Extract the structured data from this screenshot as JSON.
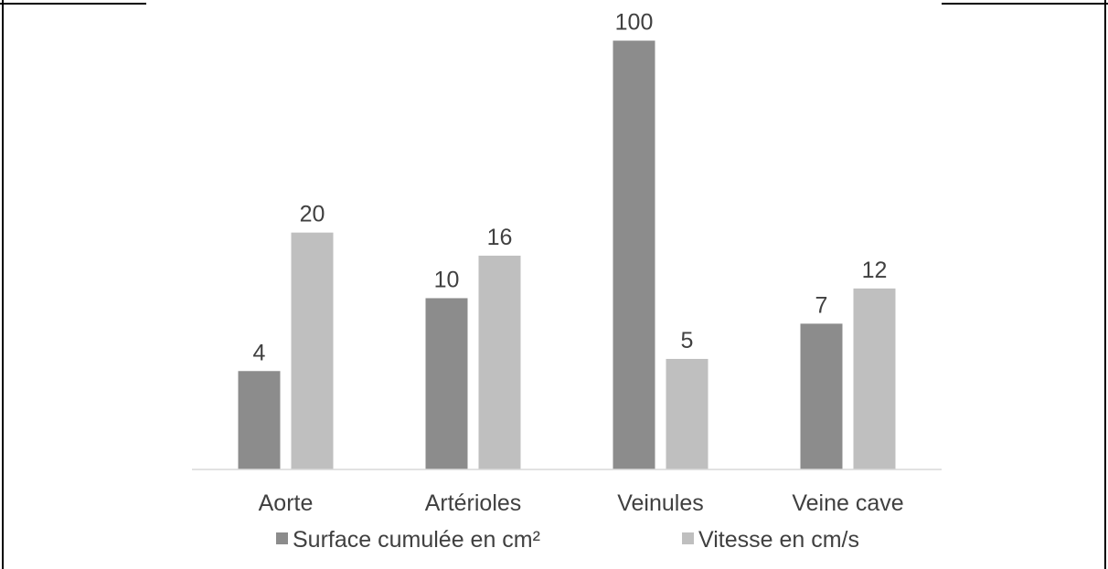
{
  "chart_data": {
    "type": "bar",
    "categories": [
      "Aorte",
      "Artérioles",
      "Veinules",
      "Veine cave"
    ],
    "series": [
      {
        "name": "Surface cumulée en cm²",
        "color": "#8c8c8c",
        "values": [
          4,
          10,
          100,
          7
        ]
      },
      {
        "name": "Vitesse en cm/s",
        "color": "#bfbfbf",
        "values": [
          20,
          16,
          5,
          12
        ]
      }
    ],
    "data_labels_scale_note": "",
    "bar_heights_linear": [
      [
        8.1,
        14.1,
        35.3,
        12.0
      ],
      [
        19.5,
        17.6,
        9.1,
        14.9
      ]
    ],
    "grid": false,
    "legend_position": "bottom",
    "title": "",
    "xlabel": "",
    "ylabel": ""
  }
}
